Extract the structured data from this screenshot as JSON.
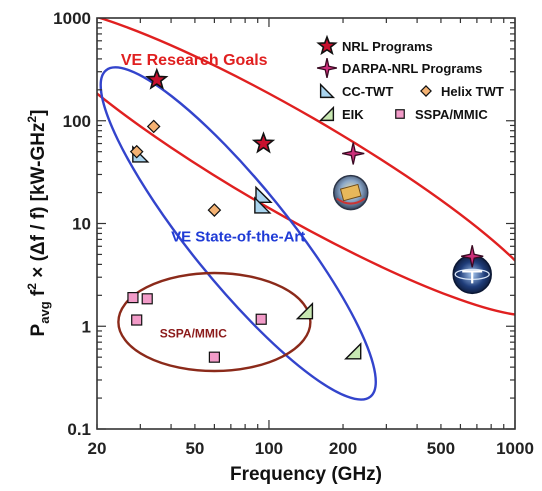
{
  "chart_data": {
    "type": "scatter",
    "title": "",
    "xlabel": "Frequency (GHz)",
    "ylabel_parts": {
      "p": "P",
      "avg": "avg",
      "f": " f",
      "two": "2",
      "times": " × (Δf / f)  [kW-GHz",
      "two_b": "2",
      "close": "]"
    },
    "x_scale": "log",
    "y_scale": "log",
    "xlim": [
      20,
      1000
    ],
    "ylim": [
      0.1,
      1000
    ],
    "x_ticks": [
      20,
      50,
      100,
      200,
      500,
      1000
    ],
    "x_tick_labels": [
      "20",
      "50",
      "100",
      "200",
      "500",
      "1000"
    ],
    "y_ticks": [
      0.1,
      1,
      10,
      100,
      1000
    ],
    "y_tick_labels": [
      "0.1",
      "1",
      "10",
      "100",
      "1000"
    ],
    "grid": false,
    "legend_position": "top-right",
    "series": [
      {
        "name": "NRL Programs",
        "marker": "star",
        "color": "#c8102e",
        "points": [
          [
            35,
            250
          ],
          [
            95,
            60
          ]
        ]
      },
      {
        "name": "DARPA-NRL Programs",
        "marker": "cross-star",
        "color": "#cc2f7a",
        "points": [
          [
            220,
            48
          ],
          [
            670,
            4.8
          ]
        ]
      },
      {
        "name": "CC-TWT",
        "marker": "triangle-left",
        "color": "#a9d4ee",
        "points": [
          [
            30,
            47
          ],
          [
            95,
            19
          ],
          [
            94,
            15
          ]
        ]
      },
      {
        "name": "Helix TWT",
        "marker": "diamond",
        "color": "#f4b273",
        "points": [
          [
            34,
            88
          ],
          [
            29,
            50
          ],
          [
            60,
            13.5
          ]
        ]
      },
      {
        "name": "EIK",
        "marker": "triangle-right",
        "color": "#c8e8b2",
        "points": [
          [
            140,
            1.4
          ],
          [
            220,
            0.57
          ]
        ]
      },
      {
        "name": "SSPA/MMIC",
        "marker": "square",
        "color": "#f29bc8",
        "points": [
          [
            28,
            1.9
          ],
          [
            32,
            1.85
          ],
          [
            29,
            1.15
          ],
          [
            93,
            1.17
          ],
          [
            60,
            0.5
          ]
        ]
      }
    ],
    "regions": [
      {
        "label": "VE Research Goals",
        "color": "#e02020",
        "center": [
          120,
          40
        ],
        "angle_deg": 30,
        "rx": 295,
        "ry": 50
      },
      {
        "label": "VE State-of-the-Art",
        "color": "#3344cc",
        "center": [
          75,
          8
        ],
        "angle_deg": 51,
        "rx": 210,
        "ry": 49
      },
      {
        "label": "SSPA/MMIC",
        "color": "#8b2a1a",
        "center": [
          60,
          1.1
        ],
        "angle_deg": 0,
        "rx": 96,
        "ry": 49
      }
    ],
    "region_labels": [
      {
        "text": "VE Research Goals",
        "color": "#e02020",
        "pos": [
          25,
          350
        ],
        "size": 16
      },
      {
        "text": "VE State-of-the-Art",
        "color": "#1f3bd6",
        "pos": [
          40,
          6.7
        ],
        "size": 15
      },
      {
        "text": "SSPA/MMIC",
        "color": "#8b1a1a",
        "pos": [
          36,
          0.78
        ],
        "size": 12
      }
    ],
    "logos": [
      {
        "name": "hi-five-logo",
        "pos": [
          215,
          20
        ]
      },
      {
        "name": "thz-logo",
        "pos": [
          670,
          3.2
        ]
      }
    ]
  }
}
